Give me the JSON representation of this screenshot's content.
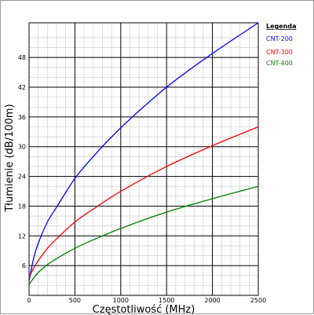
{
  "chart_data": {
    "type": "line",
    "title": "",
    "xlabel": "Częstotliwość (MHz)",
    "ylabel": "Tłumienie (dB/100m)",
    "xlim": [
      0,
      2500
    ],
    "ylim": [
      0,
      55
    ],
    "x_ticks": [
      "0",
      "500",
      "1000",
      "1500",
      "2000",
      "2500"
    ],
    "y_ticks": [
      "6",
      "12",
      "18",
      "24",
      "30",
      "36",
      "42",
      "48"
    ],
    "grid": true,
    "legend": {
      "title": "Legenda",
      "placement": "right"
    },
    "series": [
      {
        "name": "CNT-200",
        "color": "#0000ff",
        "x": [
          1,
          50,
          100,
          200,
          300,
          500,
          700,
          1000,
          1500,
          2000,
          2500
        ],
        "y": [
          3.0,
          7.5,
          10.5,
          14.8,
          17.8,
          23.6,
          28.0,
          33.8,
          42.0,
          48.8,
          55.0
        ]
      },
      {
        "name": "CNT-300",
        "color": "#ff0000",
        "x": [
          1,
          50,
          100,
          200,
          300,
          500,
          700,
          1000,
          1500,
          2000,
          2500
        ],
        "y": [
          3.6,
          5.5,
          7.0,
          9.5,
          11.4,
          14.8,
          17.4,
          21.0,
          26.0,
          30.2,
          34.0
        ]
      },
      {
        "name": "CNT-400",
        "color": "#008000",
        "x": [
          1,
          50,
          100,
          200,
          300,
          500,
          700,
          1000,
          1500,
          2000,
          2500
        ],
        "y": [
          2.2,
          3.5,
          4.6,
          6.2,
          7.4,
          9.5,
          11.2,
          13.5,
          16.8,
          19.5,
          22.0
        ]
      }
    ]
  }
}
